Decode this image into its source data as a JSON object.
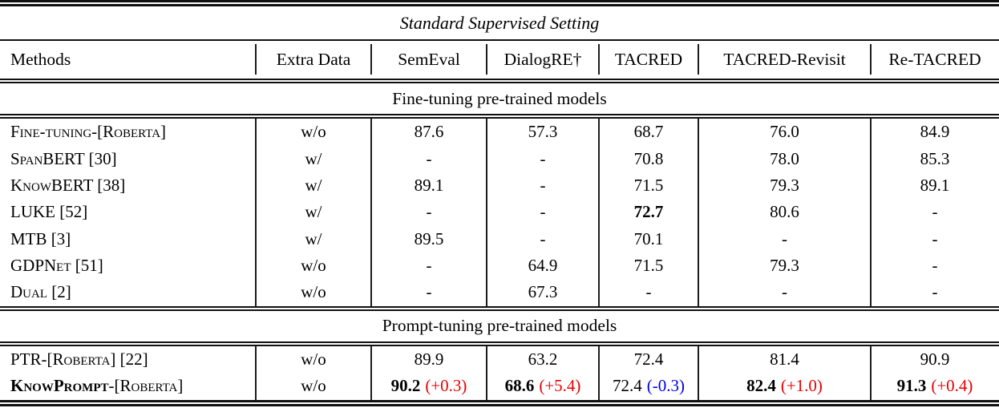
{
  "title": "Standard Supervised Setting",
  "columns": [
    "Methods",
    "Extra Data",
    "SemEval",
    "DialogRE†",
    "TACRED",
    "TACRED-Revisit",
    "Re-TACRED"
  ],
  "colors": {
    "red": "#e60000",
    "blue": "#0000e6",
    "text": "#000000",
    "rule": "#101010"
  },
  "sections": [
    {
      "header": "Fine-tuning pre-trained models",
      "rows": [
        {
          "method": [
            {
              "text": "Fine-tuning-[Roberta]",
              "bold": false
            }
          ],
          "extra": "w/o",
          "values": [
            {
              "v": "87.6"
            },
            {
              "v": "57.3"
            },
            {
              "v": "68.7"
            },
            {
              "v": "76.0"
            },
            {
              "v": "84.9"
            }
          ]
        },
        {
          "method": [
            {
              "text": "SpanBERT [30]",
              "bold": false
            }
          ],
          "extra": "w/",
          "values": [
            {
              "v": "-"
            },
            {
              "v": "-"
            },
            {
              "v": "70.8"
            },
            {
              "v": "78.0"
            },
            {
              "v": "85.3"
            }
          ]
        },
        {
          "method": [
            {
              "text": "KnowBERT [38]",
              "bold": false
            }
          ],
          "extra": "w/",
          "values": [
            {
              "v": "89.1"
            },
            {
              "v": "-"
            },
            {
              "v": "71.5"
            },
            {
              "v": "79.3"
            },
            {
              "v": "89.1"
            }
          ]
        },
        {
          "method": [
            {
              "text": "LUKE [52]",
              "bold": false
            }
          ],
          "extra": "w/",
          "values": [
            {
              "v": "-"
            },
            {
              "v": "-"
            },
            {
              "v": "72.7",
              "bold": true
            },
            {
              "v": "80.6"
            },
            {
              "v": "-"
            }
          ]
        },
        {
          "method": [
            {
              "text": "MTB [3]",
              "bold": false
            }
          ],
          "extra": "w/",
          "values": [
            {
              "v": "89.5"
            },
            {
              "v": "-"
            },
            {
              "v": "70.1"
            },
            {
              "v": "-"
            },
            {
              "v": "-"
            }
          ]
        },
        {
          "method": [
            {
              "text": "GDPNet [51]",
              "bold": false
            }
          ],
          "extra": "w/o",
          "values": [
            {
              "v": "-"
            },
            {
              "v": "64.9"
            },
            {
              "v": "71.5"
            },
            {
              "v": "79.3"
            },
            {
              "v": "-"
            }
          ]
        },
        {
          "method": [
            {
              "text": "Dual [2]",
              "bold": false
            }
          ],
          "extra": "w/o",
          "values": [
            {
              "v": "-"
            },
            {
              "v": "67.3"
            },
            {
              "v": "-"
            },
            {
              "v": "-"
            },
            {
              "v": "-"
            }
          ]
        }
      ]
    },
    {
      "header": "Prompt-tuning pre-trained models",
      "rows": [
        {
          "method": [
            {
              "text": "PTR-[Roberta] [22]",
              "bold": false
            }
          ],
          "extra": "w/o",
          "values": [
            {
              "v": "89.9"
            },
            {
              "v": "63.2"
            },
            {
              "v": "72.4"
            },
            {
              "v": "81.4"
            },
            {
              "v": "90.9"
            }
          ]
        },
        {
          "method": [
            {
              "text": "KnowPrompt",
              "bold": true
            },
            {
              "text": "-[Roberta]",
              "bold": false
            }
          ],
          "extra": "w/o",
          "values": [
            {
              "v": "90.2",
              "bold": true,
              "delta": "(+0.3)",
              "delta_color": "red"
            },
            {
              "v": "68.6",
              "bold": true,
              "delta": "(+5.4)",
              "delta_color": "red"
            },
            {
              "v": "72.4",
              "bold": false,
              "delta": "(-0.3)",
              "delta_color": "blue"
            },
            {
              "v": "82.4",
              "bold": true,
              "delta": "(+1.0)",
              "delta_color": "red"
            },
            {
              "v": "91.3",
              "bold": true,
              "delta": "(+0.4)",
              "delta_color": "red"
            }
          ]
        }
      ]
    }
  ]
}
